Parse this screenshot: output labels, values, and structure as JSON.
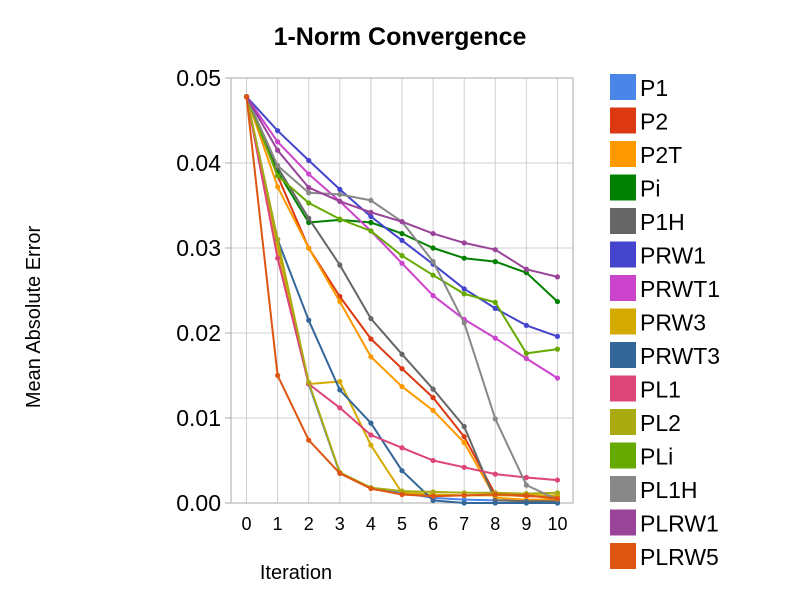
{
  "chart_data": {
    "type": "line",
    "title": "1-Norm Convergence",
    "xlabel": "Iteration",
    "ylabel": "Mean Absolute Error",
    "x": [
      0,
      1,
      2,
      3,
      4,
      5,
      6,
      7,
      8,
      9,
      10
    ],
    "xlim": [
      -0.5,
      10.5
    ],
    "ylim": [
      0,
      0.05
    ],
    "yticks": [
      "0.00",
      "0.01",
      "0.02",
      "0.03",
      "0.04",
      "0.05"
    ],
    "ytick_values": [
      0,
      0.01,
      0.02,
      0.03,
      0.04,
      0.05
    ],
    "xticks": [
      "0",
      "1",
      "2",
      "3",
      "4",
      "5",
      "6",
      "7",
      "8",
      "9",
      "10"
    ],
    "grid": true,
    "legend_position": "right",
    "series": [
      {
        "name": "P1",
        "color": "#4a86e8",
        "values": [
          0.0478,
          0.03,
          0.014,
          0.0035,
          0.0018,
          0.0012,
          0.0006,
          0.0004,
          0.0003,
          0.0003,
          0.0003
        ]
      },
      {
        "name": "P2",
        "color": "#dc3912",
        "values": [
          0.0478,
          0.0385,
          0.03,
          0.0243,
          0.0193,
          0.0158,
          0.0124,
          0.0078,
          0.001,
          0.0008,
          0.0008
        ]
      },
      {
        "name": "P2T",
        "color": "#ff9900",
        "values": [
          0.0478,
          0.0372,
          0.03,
          0.0237,
          0.0172,
          0.0137,
          0.0109,
          0.0071,
          0.0006,
          0.0004,
          0.0004
        ]
      },
      {
        "name": "Pi",
        "color": "#008000",
        "values": [
          0.0478,
          0.039,
          0.033,
          0.0333,
          0.033,
          0.0317,
          0.03,
          0.0288,
          0.0284,
          0.0271,
          0.0237
        ]
      },
      {
        "name": "P1H",
        "color": "#666666",
        "values": [
          0.0478,
          0.0395,
          0.0335,
          0.028,
          0.0217,
          0.0175,
          0.0134,
          0.009,
          0.0003,
          0.0002,
          0.0002
        ]
      },
      {
        "name": "PRW1",
        "color": "#4444cc",
        "values": [
          0.0478,
          0.0438,
          0.0403,
          0.0369,
          0.0337,
          0.0309,
          0.0281,
          0.0252,
          0.0229,
          0.0209,
          0.0196
        ]
      },
      {
        "name": "PRWT1",
        "color": "#cc44cc",
        "values": [
          0.0478,
          0.0425,
          0.0387,
          0.0355,
          0.032,
          0.0282,
          0.0244,
          0.0216,
          0.0194,
          0.017,
          0.0147
        ]
      },
      {
        "name": "PRW3",
        "color": "#d4aa00",
        "values": [
          0.0478,
          0.03,
          0.014,
          0.0143,
          0.0068,
          0.0012,
          0.001,
          0.0009,
          0.0009,
          0.0009,
          0.0009
        ]
      },
      {
        "name": "PRWT3",
        "color": "#336699",
        "values": [
          0.0478,
          0.031,
          0.0215,
          0.0133,
          0.0094,
          0.0038,
          0.0003,
          0.0,
          0.0,
          0.0,
          0.0
        ]
      },
      {
        "name": "PL1",
        "color": "#dd4477",
        "values": [
          0.0478,
          0.0288,
          0.014,
          0.0112,
          0.008,
          0.0065,
          0.005,
          0.0042,
          0.0034,
          0.003,
          0.0027
        ]
      },
      {
        "name": "PL2",
        "color": "#aaaa11",
        "values": [
          0.0478,
          0.031,
          0.0142,
          0.0036,
          0.0018,
          0.0014,
          0.0013,
          0.0012,
          0.0012,
          0.0011,
          0.0012
        ]
      },
      {
        "name": "PLi",
        "color": "#66aa00",
        "values": [
          0.0478,
          0.0385,
          0.0353,
          0.0334,
          0.032,
          0.0291,
          0.0268,
          0.0246,
          0.0236,
          0.0176,
          0.0181
        ]
      },
      {
        "name": "PL1H",
        "color": "#888888",
        "values": [
          0.0478,
          0.0397,
          0.0365,
          0.0363,
          0.0356,
          0.0331,
          0.0284,
          0.0212,
          0.0099,
          0.0021,
          0.0004
        ]
      },
      {
        "name": "PLRW1",
        "color": "#994499",
        "values": [
          0.0478,
          0.0415,
          0.0371,
          0.0355,
          0.0342,
          0.0331,
          0.0317,
          0.0306,
          0.0298,
          0.0275,
          0.0266
        ]
      },
      {
        "name": "PLRW5",
        "color": "#dd5511",
        "values": [
          0.0478,
          0.015,
          0.0074,
          0.0035,
          0.0017,
          0.001,
          0.0008,
          0.0009,
          0.001,
          0.0009,
          0.0005
        ]
      }
    ]
  }
}
